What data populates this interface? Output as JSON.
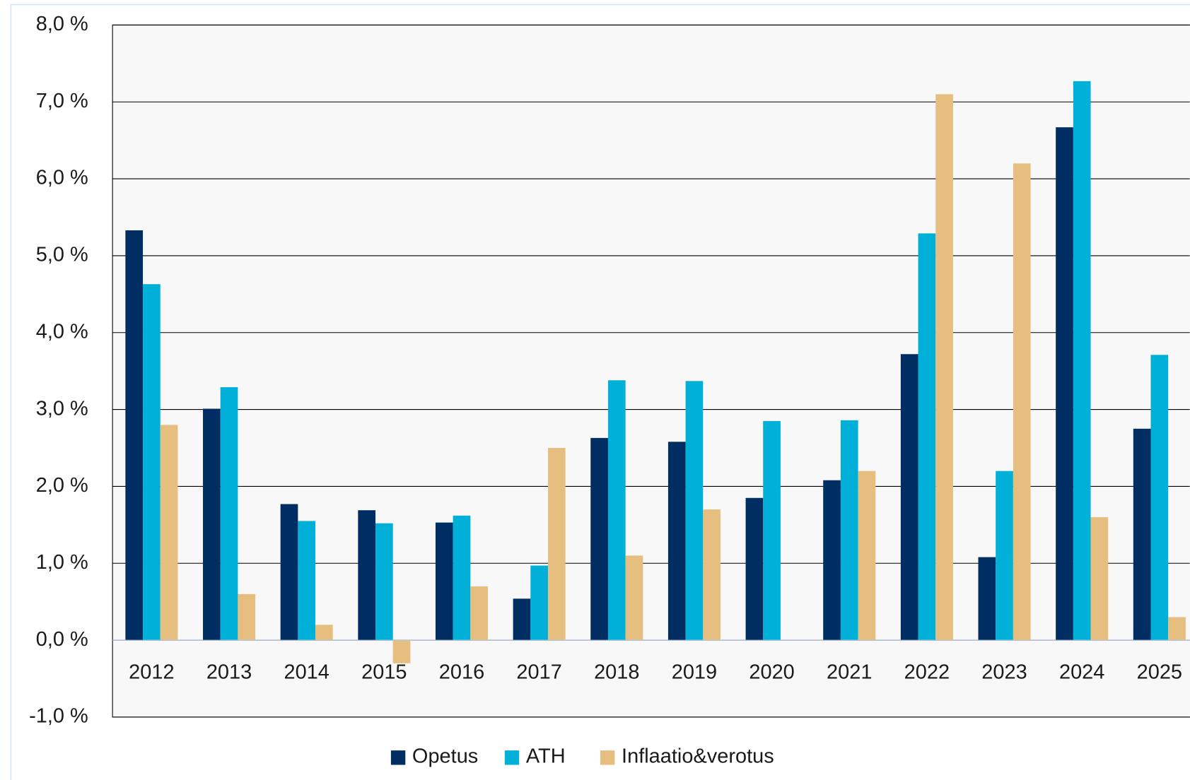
{
  "chart_data": {
    "type": "bar",
    "categories": [
      "2012",
      "2013",
      "2014",
      "2015",
      "2016",
      "2017",
      "2018",
      "2019",
      "2020",
      "2021",
      "2022",
      "2023",
      "2024",
      "2025"
    ],
    "series": [
      {
        "name": "Opetus",
        "color": "#002d62",
        "values": [
          5.33,
          3.01,
          1.77,
          1.69,
          1.53,
          0.54,
          2.63,
          2.58,
          1.85,
          2.08,
          3.72,
          1.08,
          6.67,
          2.75
        ]
      },
      {
        "name": "ATH",
        "color": "#00b0d8",
        "values": [
          4.63,
          3.29,
          1.55,
          1.52,
          1.62,
          0.97,
          3.38,
          3.37,
          2.85,
          2.86,
          5.29,
          2.2,
          7.27,
          3.71
        ]
      },
      {
        "name": "Inflaatio&verotus",
        "color": "#e6bf80",
        "values": [
          2.8,
          0.6,
          0.2,
          -0.3,
          0.7,
          2.5,
          1.1,
          1.7,
          null,
          2.2,
          7.1,
          6.2,
          1.6,
          0.3
        ]
      }
    ],
    "ylim": [
      -1,
      8
    ],
    "yticks": [
      {
        "value": -1,
        "label": "-1,0 %"
      },
      {
        "value": 0,
        "label": "0,0 %"
      },
      {
        "value": 1,
        "label": "1,0 %"
      },
      {
        "value": 2,
        "label": "2,0 %"
      },
      {
        "value": 3,
        "label": "3,0 %"
      },
      {
        "value": 4,
        "label": "4,0 %"
      },
      {
        "value": 5,
        "label": "5,0 %"
      },
      {
        "value": 6,
        "label": "6,0 %"
      },
      {
        "value": 7,
        "label": "7,0 %"
      },
      {
        "value": 8,
        "label": "8,0 %"
      }
    ],
    "grid": true,
    "legend": "bottom"
  }
}
